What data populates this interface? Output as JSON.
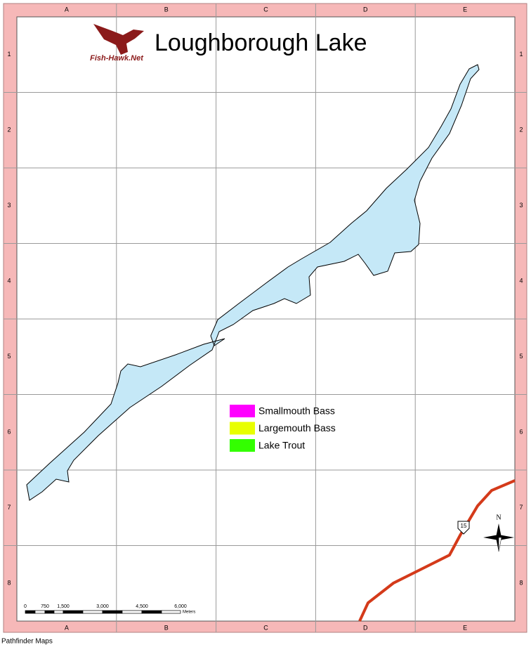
{
  "header": {
    "title": "Loughborough Lake",
    "logo_text": "Fish-Hawk.Net"
  },
  "grid": {
    "columns": [
      "A",
      "B",
      "C",
      "D",
      "E"
    ],
    "rows": [
      "1",
      "2",
      "3",
      "4",
      "5",
      "6",
      "7",
      "8"
    ]
  },
  "legend": {
    "items": [
      {
        "label": "Smallmouth Bass",
        "color": "#ff00ff"
      },
      {
        "label": "Largemouth Bass",
        "color": "#e8ff00"
      },
      {
        "label": "Lake Trout",
        "color": "#33ff00"
      }
    ]
  },
  "scale_bar": {
    "labels": [
      "0",
      "750",
      "1,500",
      "3,000",
      "4,500",
      "6,000"
    ],
    "unit": "Meters"
  },
  "compass": {
    "label": "N"
  },
  "highway": {
    "label": "15"
  },
  "footer": {
    "credit": "Pathfinder Maps"
  }
}
